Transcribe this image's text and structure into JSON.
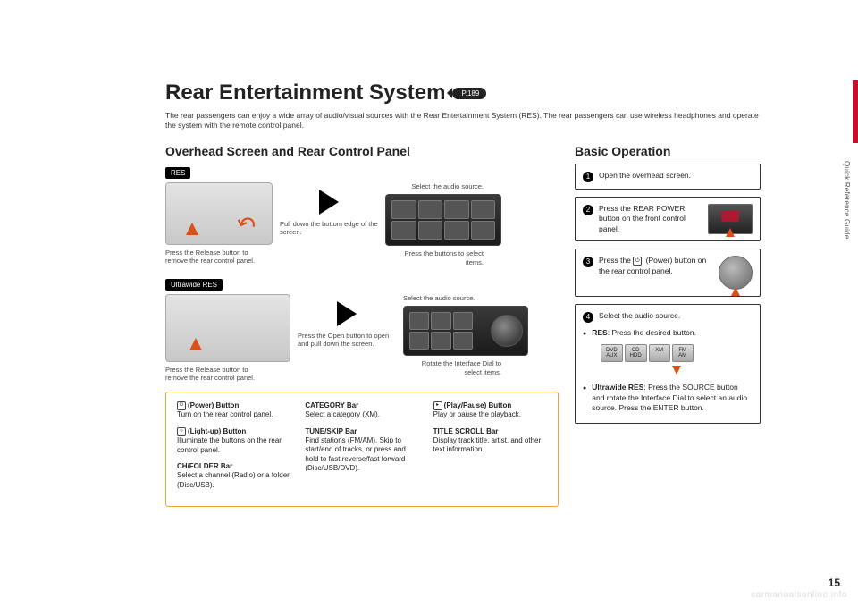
{
  "title": "Rear Entertainment System",
  "page_ref": "P.189",
  "intro": "The rear passengers can enjoy a wide array of audio/visual sources with the Rear Entertainment System (RES). The rear passengers can use wireless headphones and operate the system with the remote control panel.",
  "left_heading": "Overhead Screen and Rear Control Panel",
  "right_heading": "Basic Operation",
  "badge_res": "RES",
  "badge_uw": "Ultrawide RES",
  "caps": {
    "release": "Press the Release button to remove the rear control panel.",
    "pulldown": "Pull down the bottom edge of the screen.",
    "select_source": "Select the audio source.",
    "press_buttons": "Press the buttons to select items.",
    "open_button": "Press the Open button to open and pull down the screen.",
    "rotate_dial": "Rotate the Interface Dial to select items."
  },
  "ref": {
    "power_t": "(Power) Button",
    "power_d": "Turn on the rear control panel.",
    "light_t": "(Light-up) Button",
    "light_d": "Illuminate the buttons on the rear control panel.",
    "ch_t": "CH/FOLDER Bar",
    "ch_d": "Select a channel (Radio) or a folder (Disc/USB).",
    "cat_t": "CATEGORY Bar",
    "cat_d": "Select a category (XM).",
    "tune_t": "TUNE/SKIP Bar",
    "tune_d": "Find stations (FM/AM). Skip to start/end of tracks, or press and hold to fast reverse/fast forward (Disc/USB/DVD).",
    "play_t": "(Play/Pause) Button",
    "play_d": "Play or pause the playback.",
    "title_t": "TITLE SCROLL Bar",
    "title_d": "Display track title, artist, and other text information."
  },
  "steps": {
    "s1": "Open the overhead screen.",
    "s2": "Press the REAR POWER button on the front control panel.",
    "s3a": "Press the ",
    "s3b": " (Power) button on the rear control panel.",
    "s4": "Select the audio source.",
    "s4_res_label": "RES",
    "s4_res": ": Press the desired button.",
    "s4_uw_label": "Ultrawide RES",
    "s4_uw": ": Press the SOURCE button and rotate the Interface Dial to select an audio source. Press the ENTER button."
  },
  "sources": [
    "DVD\nAUX",
    "CD\nHDD",
    "XM",
    "FM\nAM"
  ],
  "side_label": "Quick Reference Guide",
  "page_num": "15",
  "watermark": "carmanualsonline.info",
  "colors": {
    "accent": "#c8102e",
    "orange": "#f2a03d",
    "arrow": "#d9501a"
  }
}
